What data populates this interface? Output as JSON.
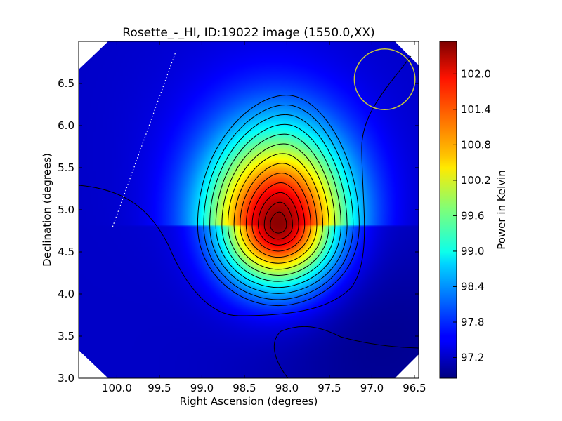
{
  "chart_data": {
    "type": "heatmap",
    "title": "Rosette_-_HI, ID:19022 image (1550.0,XX)",
    "xlabel": "Right Ascension (degrees)",
    "ylabel": "Declination (degrees)",
    "colorbar_label": "Power in Kelvin",
    "xlim": [
      100.45,
      96.45
    ],
    "ylim": [
      3.0,
      7.0
    ],
    "x_ticks": [
      100.0,
      99.5,
      99.0,
      98.5,
      98.0,
      97.5,
      97.0,
      96.5
    ],
    "x_tick_labels": [
      "100.0",
      "99.5",
      "99.0",
      "98.5",
      "98.0",
      "97.5",
      "97.0",
      "96.5"
    ],
    "y_ticks": [
      3.0,
      3.5,
      4.0,
      4.5,
      5.0,
      5.5,
      6.0,
      6.5
    ],
    "y_tick_labels": [
      "3.0",
      "3.5",
      "4.0",
      "4.5",
      "5.0",
      "5.5",
      "6.0",
      "6.5"
    ],
    "colorbar_range": [
      96.85,
      102.55
    ],
    "colorbar_ticks": [
      97.2,
      97.8,
      98.4,
      99.0,
      99.6,
      100.2,
      100.8,
      101.4,
      102.0
    ],
    "colorbar_tick_labels": [
      "97.2",
      "97.8",
      "98.4",
      "99.0",
      "99.6",
      "100.2",
      "100.8",
      "101.4",
      "102.0"
    ],
    "colormap": "jet",
    "peak": {
      "ra": 98.1,
      "dec": 4.82,
      "value": 102.4
    },
    "background_level": 97.25,
    "contour_count": 13,
    "beam_circle": {
      "ra": 96.85,
      "dec": 6.55,
      "radius_deg": 0.36,
      "color": "#c8c83a"
    },
    "dotted_line": {
      "from": [
        100.05,
        4.8
      ],
      "to": [
        99.3,
        6.9
      ]
    },
    "grid": false
  }
}
